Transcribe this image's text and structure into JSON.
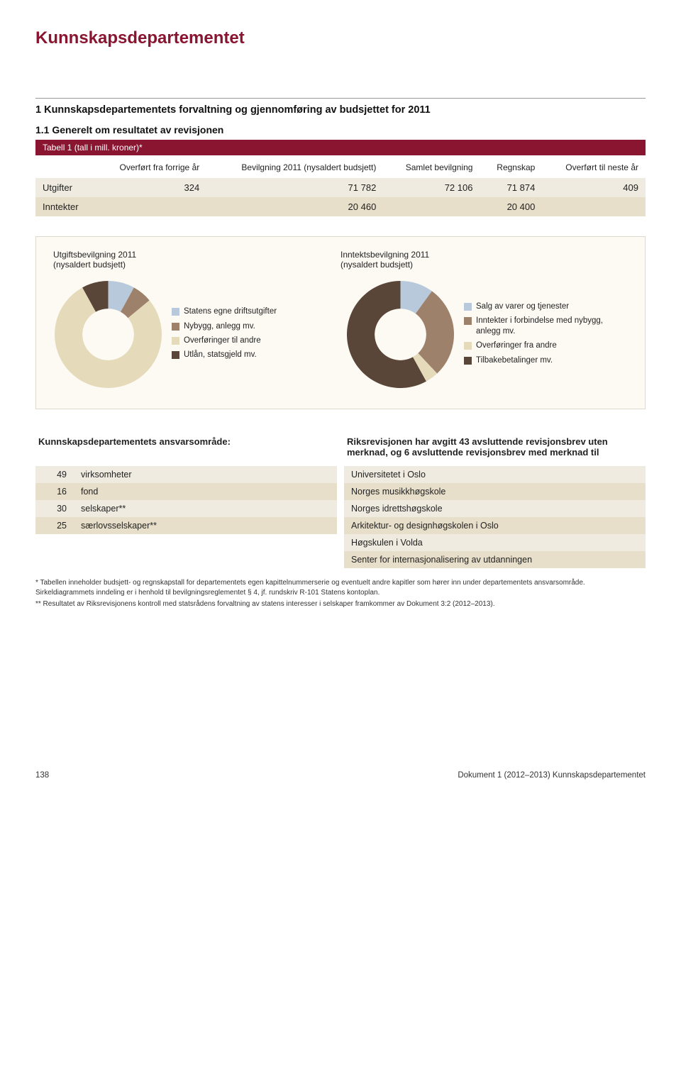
{
  "dept_title": "Kunnskapsdepartementet",
  "section1_heading": "1 Kunnskapsdepartementets forvaltning og gjennomføring av budsjettet for 2011",
  "section11_heading": "1.1 Generelt om resultatet av revisjonen",
  "table_label": "Tabell 1 (tall i mill. kroner)*",
  "budget_table": {
    "columns": [
      "",
      "Overført fra forrige år",
      "Bevilgning 2011 (nysaldert budsjett)",
      "Samlet bevilgning",
      "Regnskap",
      "Overført til neste år"
    ],
    "rows": [
      [
        "Utgifter",
        "324",
        "71 782",
        "72 106",
        "71 874",
        "409"
      ],
      [
        "Inntekter",
        "",
        "20 460",
        "",
        "20 400",
        ""
      ]
    ]
  },
  "chart_left": {
    "title_l1": "Utgiftsbevilgning 2011",
    "title_l2": "(nysaldert budsjett)",
    "type": "donut",
    "slices": [
      {
        "label": "Statens egne driftsutgifter",
        "value": 8,
        "color": "#b9c9dc"
      },
      {
        "label": "Nybygg, anlegg mv.",
        "value": 6,
        "color": "#9d816b"
      },
      {
        "label": "Overføringer til andre",
        "value": 78,
        "color": "#e5dbbb"
      },
      {
        "label": "Utlån, statsgjeld mv.",
        "value": 8,
        "color": "#5a4638"
      }
    ],
    "inner_radius": 0.48,
    "bg": "#fcfaf3"
  },
  "chart_right": {
    "title_l1": "Inntektsbevilgning 2011",
    "title_l2": "(nysaldert budsjett)",
    "type": "donut",
    "slices": [
      {
        "label": "Salg av varer og tjenester",
        "value": 10,
        "color": "#b9c9dc"
      },
      {
        "label": "Inntekter i forbindelse med nybygg, anlegg mv.",
        "value": 28,
        "color": "#9d816b"
      },
      {
        "label": "Overføringer fra andre",
        "value": 4,
        "color": "#e5dbbb"
      },
      {
        "label": "Tilbakebetalinger mv.",
        "value": 58,
        "color": "#5a4638"
      }
    ],
    "inner_radius": 0.48,
    "bg": "#fcfaf3"
  },
  "ansvars_heading": "Kunnskapsdepartementets ansvarsområde:",
  "ansvars_rows": [
    {
      "n": "49",
      "t": "virksomheter"
    },
    {
      "n": "16",
      "t": "fond"
    },
    {
      "n": "30",
      "t": "selskaper**"
    },
    {
      "n": "25",
      "t": "særlovsselskaper**"
    }
  ],
  "merknad_heading": "Riksrevisjonen har avgitt 43 avsluttende revisjonsbrev uten merknad, og 6 avsluttende revisjonsbrev med merknad til",
  "merknad_rows": [
    "Universitetet i Oslo",
    "Norges musikkhøgskole",
    "Norges idrettshøgskole",
    "Arkitektur- og designhøgskolen i Oslo",
    "Høgskulen i Volda",
    "Senter for internasjonalisering av utdanningen"
  ],
  "footnotes": [
    "*  Tabellen inneholder budsjett- og regnskapstall for departementets egen kapittelnummerserie og eventuelt andre kapitler som hører inn under departementets ansvarsområde. Sirkeldiagrammets inndeling er i henhold til bevilgningsreglementet § 4, jf. rundskriv R-101 Statens kontoplan.",
    "** Resultatet av Riksrevisjonens kontroll med statsrådens forvaltning av statens interesser i selskaper framkommer av Dokument 3:2 (2012–2013)."
  ],
  "footer_page": "138",
  "footer_doc": "Dokument 1 (2012–2013) Kunnskapsdepartementet"
}
